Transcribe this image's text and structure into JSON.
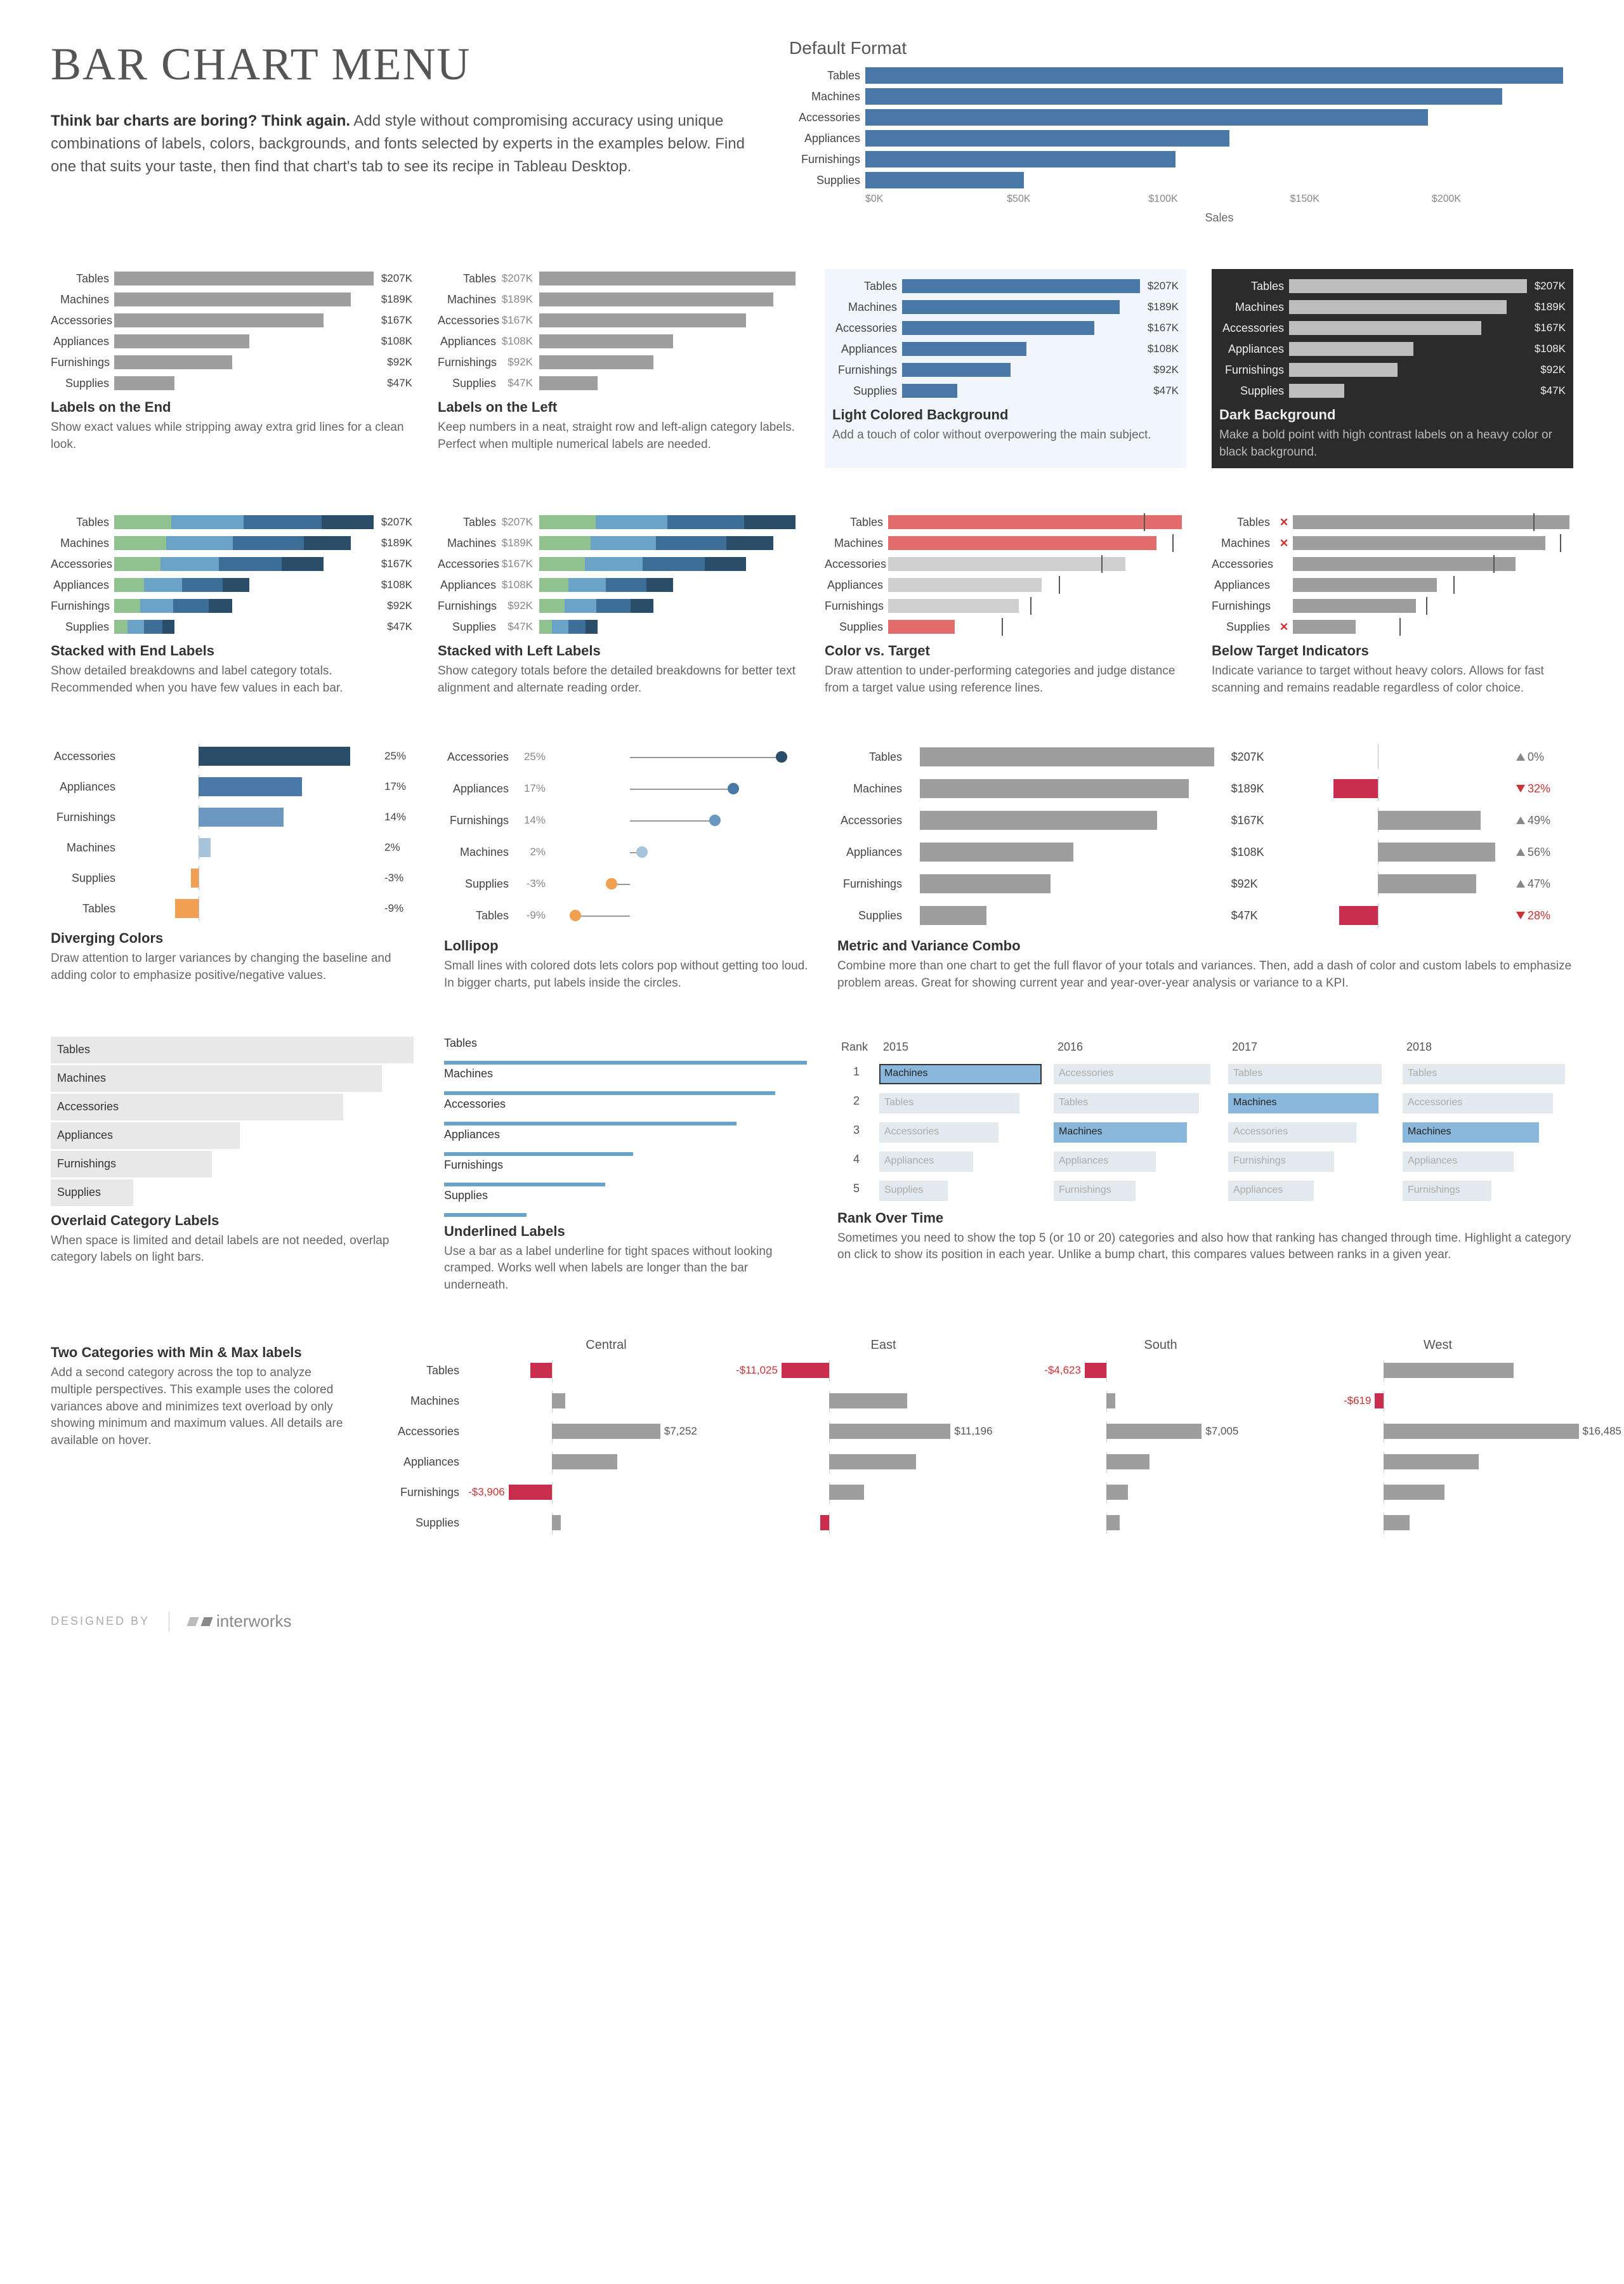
{
  "title": "BAR CHART MENU",
  "intro": {
    "strong": "Think bar charts are boring? Think again.",
    "rest": " Add style without compromising accuracy using unique combinations of labels, colors, backgrounds, and fonts selected by experts in the examples below. Find one that suits your taste, then find that chart's tab to see its recipe in Tableau Desktop."
  },
  "default": {
    "heading": "Default Format",
    "categories": [
      "Tables",
      "Machines",
      "Accessories",
      "Appliances",
      "Furnishings",
      "Supplies"
    ],
    "values": [
      207,
      189,
      167,
      108,
      92,
      47
    ],
    "max": 210,
    "bar_color": "#4a78a6",
    "axis_ticks": [
      "$0K",
      "$50K",
      "$100K",
      "$150K",
      "$200K"
    ],
    "xlabel": "Sales"
  },
  "shared_data": {
    "categories": [
      "Tables",
      "Machines",
      "Accessories",
      "Appliances",
      "Furnishings",
      "Supplies"
    ],
    "values": [
      207,
      189,
      167,
      108,
      92,
      47
    ],
    "labels": [
      "$207K",
      "$189K",
      "$167K",
      "$108K",
      "$92K",
      "$47K"
    ],
    "max": 210
  },
  "tiles": {
    "labels_end": {
      "title": "Labels on the End",
      "desc": "Show exact values while stripping away extra grid lines for a clean look.",
      "bar_color": "#9e9e9e",
      "label_w": 100
    },
    "labels_left": {
      "title": "Labels on the Left",
      "desc": "Keep numbers in a neat, straight row and left-align category labels. Perfect when multiple numerical labels are needed.",
      "bar_color": "#9e9e9e",
      "label_w": 100
    },
    "light_bg": {
      "title": "Light Colored Background",
      "desc": "Add a touch of color without overpowering the main subject.",
      "bar_color": "#4a78a6",
      "bg": "#eaf2f8"
    },
    "dark_bg": {
      "title": "Dark Background",
      "desc": "Make a bold point with high contrast labels on a heavy color or black background.",
      "bar_color": "#bdbdbd",
      "bg": "#2b2b2b"
    },
    "stacked_end": {
      "title": "Stacked with End Labels",
      "desc": "Show detailed breakdowns and label category totals. Recommended when you have few values in each bar.",
      "seg_colors": [
        "#8fc28f",
        "#6aa3c7",
        "#3c6e98",
        "#2a4d6a"
      ],
      "seg_split": [
        0.22,
        0.28,
        0.3,
        0.2
      ]
    },
    "stacked_left": {
      "title": "Stacked with Left Labels",
      "desc": "Show category totals before the detailed breakdowns for better text alignment and alternate reading order.",
      "seg_colors": [
        "#8fc28f",
        "#6aa3c7",
        "#3c6e98",
        "#2a4d6a"
      ],
      "seg_split": [
        0.22,
        0.28,
        0.3,
        0.2
      ]
    },
    "color_target": {
      "title": "Color vs. Target",
      "desc": "Draw attention to under-performing categories and judge distance from a target value using reference lines.",
      "highlight_color": "#e26b6b",
      "normal_color": "#cfcfcf",
      "highlight_idx": [
        0,
        1,
        5
      ],
      "targets": [
        180,
        200,
        150,
        120,
        100,
        80
      ]
    },
    "below_target": {
      "title": "Below Target Indicators",
      "desc": "Indicate variance to target without heavy colors. Allows for fast scanning and remains readable regardless of color choice.",
      "bar_color": "#9e9e9e",
      "x_idx": [
        0,
        1,
        5
      ]
    },
    "diverging": {
      "title": "Diverging Colors",
      "desc": "Draw attention to larger variances by changing the baseline and adding color to emphasize positive/negative values.",
      "categories": [
        "Accessories",
        "Appliances",
        "Furnishings",
        "Machines",
        "Supplies",
        "Tables"
      ],
      "values": [
        25,
        17,
        14,
        2,
        -3,
        -9
      ],
      "labels": [
        "25%",
        "17%",
        "14%",
        "2%",
        "-3%",
        "-9%"
      ],
      "pos_colors": [
        "#2a4d6a",
        "#4a78a6",
        "#6a98c0",
        "#a8c4da"
      ],
      "neg_color": "#f0a050",
      "zero_pct": 30,
      "max_abs": 30
    },
    "lollipop": {
      "title": "Lollipop",
      "desc": "Small lines with colored dots lets colors pop without getting too loud. In bigger charts, put labels inside the circles.",
      "categories": [
        "Accessories",
        "Appliances",
        "Furnishings",
        "Machines",
        "Supplies",
        "Tables"
      ],
      "values": [
        25,
        17,
        14,
        2,
        -3,
        -9
      ],
      "labels": [
        "25%",
        "17%",
        "14%",
        "2%",
        "-3%",
        "-9%"
      ],
      "dot_colors": [
        "#2a4d6a",
        "#4a78a6",
        "#6a98c0",
        "#a8c4da",
        "#f0a050",
        "#f0a050"
      ],
      "zero_pct": 30,
      "max_abs": 30
    },
    "combo": {
      "title": "Metric and Variance Combo",
      "desc": "Combine more than one chart to get the full flavor of your totals and variances. Then, add a dash of color and custom labels to emphasize problem areas. Great for showing current year and year-over-year analysis or variance to a KPI.",
      "bar_color": "#9e9e9e",
      "var_values": [
        0,
        -32,
        49,
        56,
        47,
        -28
      ],
      "var_labels": [
        "0%",
        "32%",
        "49%",
        "56%",
        "47%",
        "28%"
      ],
      "var_pos_color": "#9e9e9e",
      "var_neg_color": "#c92d4e"
    },
    "overlaid": {
      "title": "Overlaid Category Labels",
      "desc": "When space is limited and detail labels are not needed, overlap category labels on light bars.",
      "bar_color": "#e8e8e8"
    },
    "underlined": {
      "title": "Underlined Labels",
      "desc": "Use a bar as a label underline for tight spaces without looking cramped. Works well when labels are longer than the bar underneath.",
      "bar_color": "#6aa3c7"
    },
    "rank": {
      "title": "Rank Over Time",
      "desc": "Sometimes you need to show the top 5 (or 10 or 20) categories and also how that ranking has changed through time. Highlight a category on click to show its position in each year. Unlike a bump chart, this compares values between ranks in a given year.",
      "rank_header": "Rank",
      "years": [
        "2015",
        "2016",
        "2017",
        "2018"
      ],
      "ranks": [
        1,
        2,
        3,
        4,
        5
      ],
      "cells": [
        [
          {
            "l": "Machines",
            "w": 95,
            "hl": true
          },
          {
            "l": "Accessories",
            "w": 92,
            "hl": false
          },
          {
            "l": "Tables",
            "w": 90,
            "hl": false
          },
          {
            "l": "Tables",
            "w": 95,
            "hl": false
          }
        ],
        [
          {
            "l": "Tables",
            "w": 82,
            "hl": false
          },
          {
            "l": "Tables",
            "w": 85,
            "hl": false
          },
          {
            "l": "Machines",
            "w": 88,
            "hl": true
          },
          {
            "l": "Accessories",
            "w": 88,
            "hl": false
          }
        ],
        [
          {
            "l": "Accessories",
            "w": 70,
            "hl": false
          },
          {
            "l": "Machines",
            "w": 78,
            "hl": true
          },
          {
            "l": "Accessories",
            "w": 75,
            "hl": false
          },
          {
            "l": "Machines",
            "w": 80,
            "hl": true
          }
        ],
        [
          {
            "l": "Appliances",
            "w": 55,
            "hl": false
          },
          {
            "l": "Appliances",
            "w": 60,
            "hl": false
          },
          {
            "l": "Furnishings",
            "w": 62,
            "hl": false
          },
          {
            "l": "Appliances",
            "w": 65,
            "hl": false
          }
        ],
        [
          {
            "l": "Supplies",
            "w": 40,
            "hl": false
          },
          {
            "l": "Furnishings",
            "w": 48,
            "hl": false
          },
          {
            "l": "Appliances",
            "w": 50,
            "hl": false
          },
          {
            "l": "Furnishings",
            "w": 52,
            "hl": false
          }
        ]
      ],
      "hl_color": "#8ab8dc",
      "normal_color": "#e2eaf0",
      "hl_border": "2px solid #333"
    },
    "two_cat": {
      "title": "Two Categories with Min & Max labels",
      "desc": "Add a second category across the top to analyze multiple perspectives. This example uses the colored variances above and minimizes text overload by only showing minimum and maximum values. All details are available on hover.",
      "regions": [
        "Central",
        "East",
        "South",
        "West"
      ],
      "categories": [
        "Tables",
        "Machines",
        "Accessories",
        "Appliances",
        "Furnishings",
        "Supplies"
      ],
      "pos_color": "#9e9e9e",
      "neg_color": "#c92d4e",
      "data": [
        [
          {
            "v": -5,
            "lbl": ""
          },
          {
            "v": -11,
            "lbl": "-$11,025"
          },
          {
            "v": -5,
            "lbl": "-$4,623"
          },
          {
            "v": 30,
            "lbl": ""
          }
        ],
        [
          {
            "v": 3,
            "lbl": ""
          },
          {
            "v": 18,
            "lbl": ""
          },
          {
            "v": 2,
            "lbl": ""
          },
          {
            "v": -2,
            "lbl": "-$619"
          }
        ],
        [
          {
            "v": 25,
            "lbl": "$7,252"
          },
          {
            "v": 28,
            "lbl": "$11,196"
          },
          {
            "v": 22,
            "lbl": "$7,005"
          },
          {
            "v": 45,
            "lbl": "$16,485"
          }
        ],
        [
          {
            "v": 15,
            "lbl": ""
          },
          {
            "v": 20,
            "lbl": ""
          },
          {
            "v": 10,
            "lbl": ""
          },
          {
            "v": 22,
            "lbl": ""
          }
        ],
        [
          {
            "v": -10,
            "lbl": "-$3,906"
          },
          {
            "v": 8,
            "lbl": ""
          },
          {
            "v": 5,
            "lbl": ""
          },
          {
            "v": 14,
            "lbl": ""
          }
        ],
        [
          {
            "v": 2,
            "lbl": ""
          },
          {
            "v": -2,
            "lbl": ""
          },
          {
            "v": 3,
            "lbl": ""
          },
          {
            "v": 6,
            "lbl": ""
          }
        ]
      ],
      "zero_pct": 30,
      "scale": 1.6
    }
  },
  "footer": {
    "designed": "DESIGNED BY",
    "brand": "interworks"
  }
}
